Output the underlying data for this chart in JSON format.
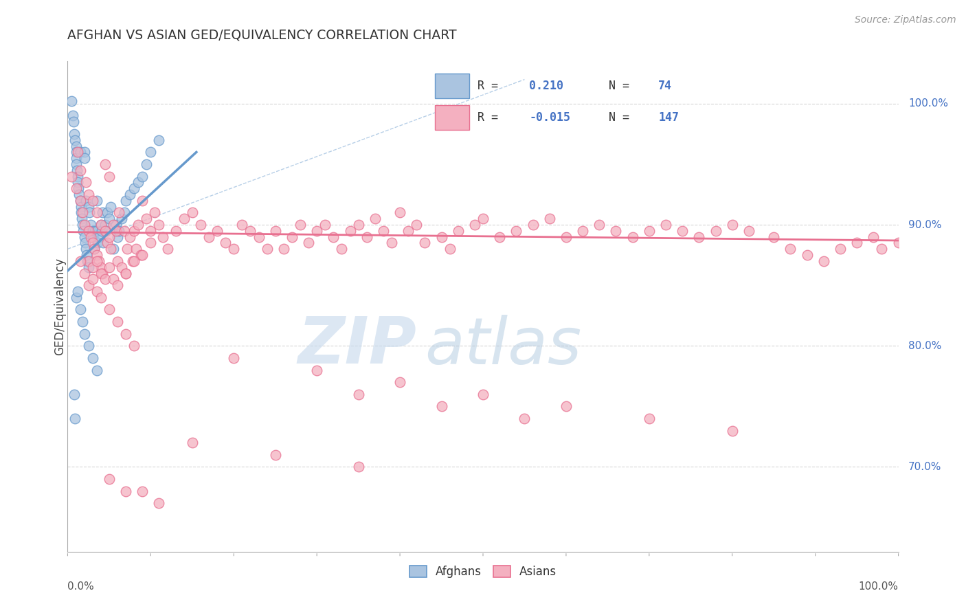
{
  "title": "AFGHAN VS ASIAN GED/EQUIVALENCY CORRELATION CHART",
  "source_text": "Source: ZipAtlas.com",
  "ylabel": "GED/Equivalency",
  "blue_color": "#6699cc",
  "blue_face": "#aac4e0",
  "pink_color": "#e87090",
  "pink_face": "#f4b0c0",
  "watermark_zip": "ZIP",
  "watermark_atlas": "atlas",
  "background_color": "#ffffff",
  "grid_color": "#cccccc",
  "blue_R": 0.21,
  "blue_N": 74,
  "pink_R": -0.015,
  "pink_N": 147,
  "xlim": [
    0.0,
    1.0
  ],
  "ylim": [
    0.63,
    1.035
  ],
  "yticks": [
    0.7,
    0.8,
    0.9,
    1.0
  ],
  "ytick_labels": [
    "70.0%",
    "80.0%",
    "90.0%",
    "100.0%"
  ],
  "afghan_x": [
    0.005,
    0.006,
    0.007,
    0.008,
    0.009,
    0.01,
    0.01,
    0.01,
    0.01,
    0.011,
    0.012,
    0.012,
    0.013,
    0.014,
    0.015,
    0.015,
    0.016,
    0.016,
    0.017,
    0.018,
    0.019,
    0.02,
    0.02,
    0.02,
    0.021,
    0.022,
    0.022,
    0.023,
    0.024,
    0.025,
    0.025,
    0.026,
    0.028,
    0.03,
    0.03,
    0.032,
    0.033,
    0.035,
    0.035,
    0.036,
    0.038,
    0.04,
    0.041,
    0.042,
    0.043,
    0.045,
    0.046,
    0.048,
    0.05,
    0.052,
    0.055,
    0.058,
    0.06,
    0.062,
    0.065,
    0.068,
    0.07,
    0.075,
    0.08,
    0.085,
    0.09,
    0.095,
    0.1,
    0.11,
    0.01,
    0.012,
    0.015,
    0.018,
    0.02,
    0.025,
    0.03,
    0.035,
    0.008,
    0.009
  ],
  "afghan_y": [
    1.002,
    0.99,
    0.985,
    0.975,
    0.97,
    0.965,
    0.96,
    0.955,
    0.95,
    0.945,
    0.94,
    0.935,
    0.93,
    0.925,
    0.92,
    0.96,
    0.915,
    0.91,
    0.905,
    0.9,
    0.895,
    0.96,
    0.955,
    0.89,
    0.885,
    0.88,
    0.92,
    0.875,
    0.87,
    0.915,
    0.865,
    0.91,
    0.9,
    0.895,
    0.89,
    0.88,
    0.895,
    0.92,
    0.895,
    0.885,
    0.89,
    0.9,
    0.895,
    0.91,
    0.885,
    0.9,
    0.895,
    0.91,
    0.905,
    0.915,
    0.88,
    0.9,
    0.89,
    0.895,
    0.905,
    0.91,
    0.92,
    0.925,
    0.93,
    0.935,
    0.94,
    0.95,
    0.96,
    0.97,
    0.84,
    0.845,
    0.83,
    0.82,
    0.81,
    0.8,
    0.79,
    0.78,
    0.76,
    0.74
  ],
  "asian_x": [
    0.005,
    0.01,
    0.012,
    0.015,
    0.015,
    0.018,
    0.02,
    0.022,
    0.025,
    0.025,
    0.028,
    0.03,
    0.03,
    0.032,
    0.035,
    0.035,
    0.038,
    0.04,
    0.04,
    0.042,
    0.045,
    0.045,
    0.048,
    0.05,
    0.05,
    0.052,
    0.055,
    0.058,
    0.06,
    0.062,
    0.065,
    0.068,
    0.07,
    0.072,
    0.075,
    0.078,
    0.08,
    0.082,
    0.085,
    0.088,
    0.09,
    0.095,
    0.1,
    0.105,
    0.11,
    0.115,
    0.12,
    0.13,
    0.14,
    0.15,
    0.16,
    0.17,
    0.18,
    0.19,
    0.2,
    0.21,
    0.22,
    0.23,
    0.24,
    0.25,
    0.26,
    0.27,
    0.28,
    0.29,
    0.3,
    0.31,
    0.32,
    0.33,
    0.34,
    0.35,
    0.36,
    0.37,
    0.38,
    0.39,
    0.4,
    0.41,
    0.42,
    0.43,
    0.45,
    0.46,
    0.47,
    0.49,
    0.5,
    0.52,
    0.54,
    0.56,
    0.58,
    0.6,
    0.62,
    0.64,
    0.66,
    0.68,
    0.7,
    0.72,
    0.74,
    0.76,
    0.78,
    0.8,
    0.82,
    0.85,
    0.87,
    0.89,
    0.91,
    0.93,
    0.95,
    0.97,
    0.98,
    1.0,
    0.025,
    0.03,
    0.035,
    0.04,
    0.045,
    0.05,
    0.055,
    0.06,
    0.07,
    0.08,
    0.09,
    0.1,
    0.015,
    0.02,
    0.025,
    0.03,
    0.035,
    0.04,
    0.05,
    0.06,
    0.07,
    0.08,
    0.2,
    0.3,
    0.4,
    0.5,
    0.6,
    0.7,
    0.8,
    0.35,
    0.45,
    0.55,
    0.15,
    0.25,
    0.35,
    0.05,
    0.07,
    0.09,
    0.11
  ],
  "asian_y": [
    0.94,
    0.93,
    0.96,
    0.92,
    0.945,
    0.91,
    0.9,
    0.935,
    0.895,
    0.925,
    0.89,
    0.885,
    0.92,
    0.88,
    0.875,
    0.91,
    0.87,
    0.865,
    0.9,
    0.86,
    0.95,
    0.895,
    0.885,
    0.94,
    0.89,
    0.88,
    0.9,
    0.895,
    0.87,
    0.91,
    0.865,
    0.895,
    0.86,
    0.88,
    0.89,
    0.87,
    0.895,
    0.88,
    0.9,
    0.875,
    0.92,
    0.905,
    0.895,
    0.91,
    0.9,
    0.89,
    0.88,
    0.895,
    0.905,
    0.91,
    0.9,
    0.89,
    0.895,
    0.885,
    0.88,
    0.9,
    0.895,
    0.89,
    0.88,
    0.895,
    0.88,
    0.89,
    0.9,
    0.885,
    0.895,
    0.9,
    0.89,
    0.88,
    0.895,
    0.9,
    0.89,
    0.905,
    0.895,
    0.885,
    0.91,
    0.895,
    0.9,
    0.885,
    0.89,
    0.88,
    0.895,
    0.9,
    0.905,
    0.89,
    0.895,
    0.9,
    0.905,
    0.89,
    0.895,
    0.9,
    0.895,
    0.89,
    0.895,
    0.9,
    0.895,
    0.89,
    0.895,
    0.9,
    0.895,
    0.89,
    0.88,
    0.875,
    0.87,
    0.88,
    0.885,
    0.89,
    0.88,
    0.885,
    0.87,
    0.865,
    0.87,
    0.86,
    0.855,
    0.865,
    0.855,
    0.85,
    0.86,
    0.87,
    0.875,
    0.885,
    0.87,
    0.86,
    0.85,
    0.855,
    0.845,
    0.84,
    0.83,
    0.82,
    0.81,
    0.8,
    0.79,
    0.78,
    0.77,
    0.76,
    0.75,
    0.74,
    0.73,
    0.76,
    0.75,
    0.74,
    0.72,
    0.71,
    0.7,
    0.69,
    0.68,
    0.68,
    0.67
  ]
}
